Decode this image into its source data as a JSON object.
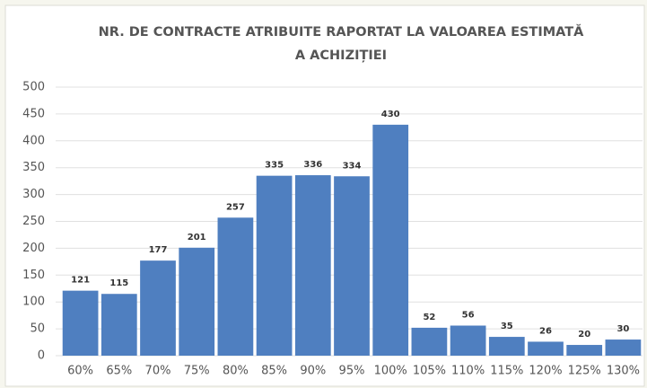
{
  "chart_data": {
    "type": "bar",
    "title": [
      "NR. DE CONTRACTE ATRIBUITE RAPORTAT LA VALOAREA ESTIMATĂ",
      "A ACHIZIȚIEI"
    ],
    "categories": [
      "60%",
      "65%",
      "70%",
      "75%",
      "80%",
      "85%",
      "90%",
      "95%",
      "100%",
      "105%",
      "110%",
      "115%",
      "120%",
      "125%",
      "130%"
    ],
    "values": [
      121,
      115,
      177,
      201,
      257,
      335,
      336,
      334,
      430,
      52,
      56,
      35,
      26,
      20,
      30
    ],
    "color": "#4f7fc0",
    "ylim": [
      0,
      500
    ],
    "yticks": [
      0,
      50,
      100,
      150,
      200,
      250,
      300,
      350,
      400,
      450,
      500
    ],
    "grid": true
  }
}
